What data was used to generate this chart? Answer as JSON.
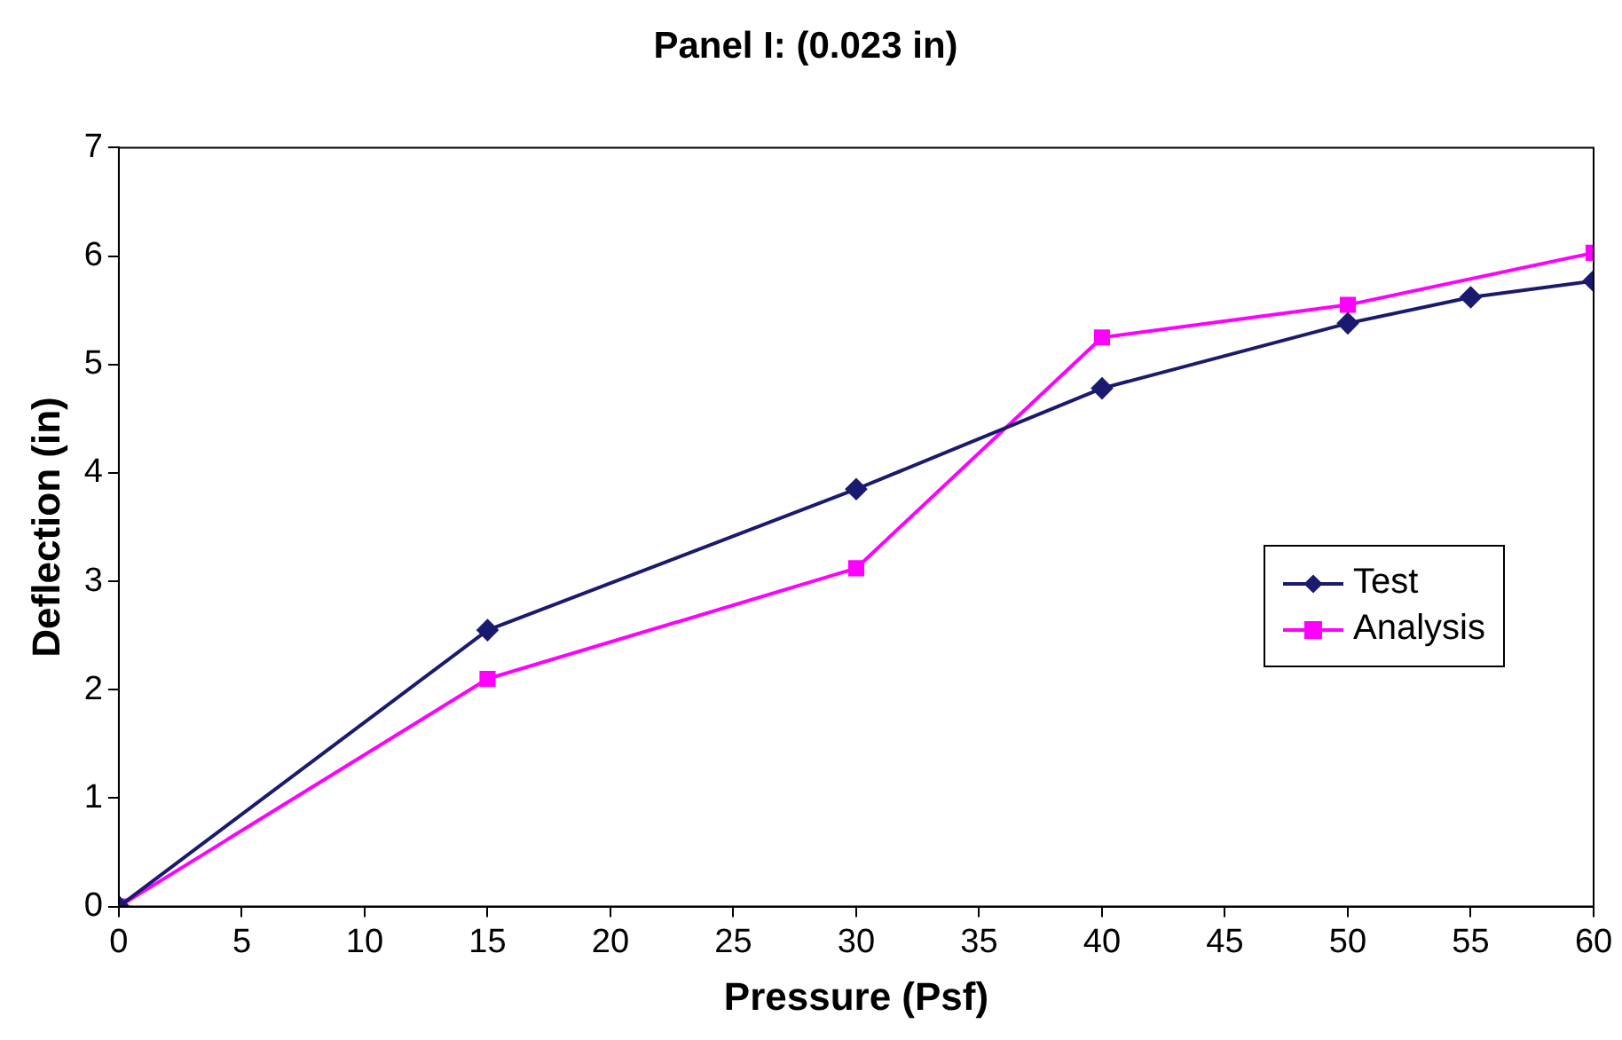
{
  "chart_data": {
    "type": "line",
    "title": "Panel I: (0.023 in)",
    "xlabel": "Pressure (Psf)",
    "ylabel": "Deflection (in)",
    "xlim": [
      0,
      60
    ],
    "xticks": [
      0,
      5,
      10,
      15,
      20,
      25,
      30,
      35,
      40,
      45,
      50,
      55,
      60
    ],
    "ylim": [
      0,
      7
    ],
    "yticks": [
      0,
      1,
      2,
      3,
      4,
      5,
      6,
      7
    ],
    "grid": false,
    "legend": "right",
    "line_style": "solid",
    "series": [
      {
        "name": "Test",
        "color": "#1a1a6e",
        "marker": "diamond",
        "x": [
          0,
          15,
          30,
          40,
          50,
          55,
          60
        ],
        "values": [
          0,
          2.55,
          3.85,
          4.78,
          5.38,
          5.62,
          5.77
        ]
      },
      {
        "name": "Analysis",
        "color": "#ff00ff",
        "marker": "square",
        "x": [
          0,
          15,
          30,
          40,
          50,
          60
        ],
        "values": [
          0,
          2.1,
          3.12,
          5.25,
          5.55,
          6.03
        ]
      }
    ]
  }
}
